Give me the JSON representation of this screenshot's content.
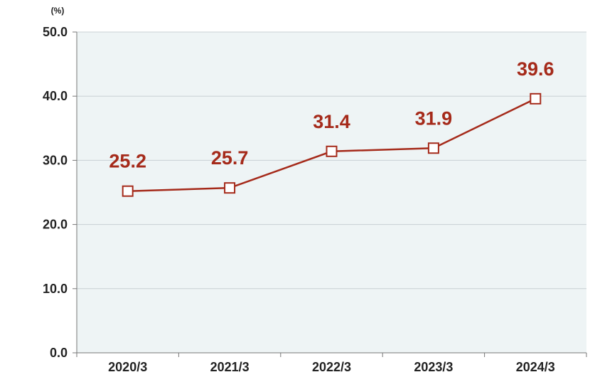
{
  "chart_data": {
    "type": "line",
    "unit_label": "(%)",
    "categories": [
      "2020/3",
      "2021/3",
      "2022/3",
      "2023/3",
      "2024/3"
    ],
    "series": [
      {
        "values": [
          25.2,
          25.7,
          31.4,
          31.9,
          39.6
        ]
      }
    ],
    "ylim": [
      0,
      50
    ],
    "yticks": [
      "0.0",
      "10.0",
      "20.0",
      "30.0",
      "40.0",
      "50.0"
    ],
    "grid": true,
    "colors": {
      "line": "#a52a1a",
      "plot_bg": "#eef4f5",
      "grid": "#c8d0d4",
      "axis": "#777777"
    }
  }
}
